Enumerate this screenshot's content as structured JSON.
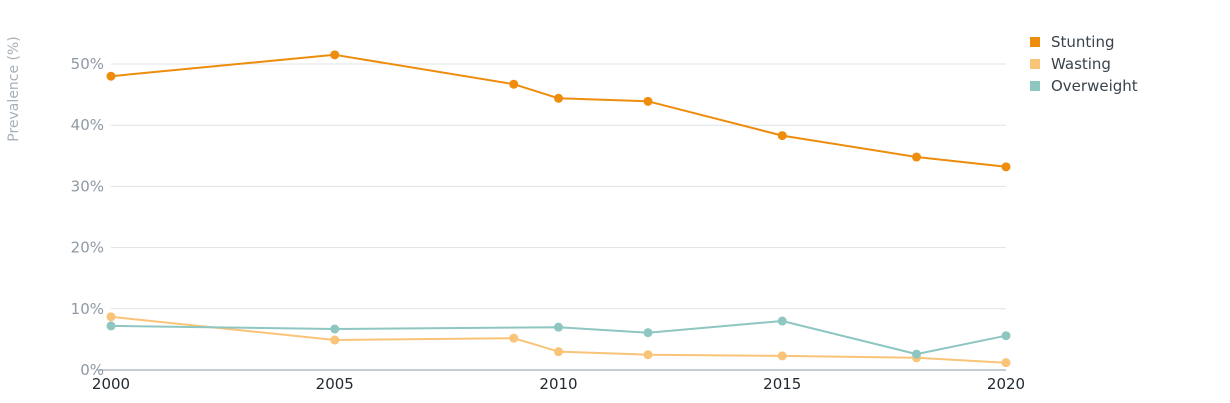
{
  "chart_data": {
    "type": "line",
    "title": "",
    "xlabel": "",
    "ylabel": "Prevalence (%)",
    "xlim": [
      2000,
      2020
    ],
    "ylim": [
      0,
      50
    ],
    "x_ticks": [
      2000,
      2005,
      2010,
      2015,
      2020
    ],
    "x_tick_labels": [
      "2000",
      "2005",
      "2010",
      "2015",
      "2020"
    ],
    "y_ticks": [
      0,
      10,
      20,
      30,
      40,
      50
    ],
    "y_tick_labels": [
      "0%",
      "10%",
      "20%",
      "30%",
      "40%",
      "50%"
    ],
    "grid": "horizontal",
    "legend_position": "top-right",
    "series": [
      {
        "name": "Stunting",
        "color": "#ee8c0c",
        "points": [
          {
            "x": 2000,
            "y": 48.0
          },
          {
            "x": 2005,
            "y": 51.5
          },
          {
            "x": 2009,
            "y": 46.7
          },
          {
            "x": 2010,
            "y": 44.4
          },
          {
            "x": 2012,
            "y": 43.9
          },
          {
            "x": 2015,
            "y": 38.3
          },
          {
            "x": 2018,
            "y": 34.8
          },
          {
            "x": 2020,
            "y": 33.2
          }
        ]
      },
      {
        "name": "Wasting",
        "color": "#fac478",
        "points": [
          {
            "x": 2000,
            "y": 8.7
          },
          {
            "x": 2005,
            "y": 4.9
          },
          {
            "x": 2009,
            "y": 5.2
          },
          {
            "x": 2010,
            "y": 3.0
          },
          {
            "x": 2012,
            "y": 2.5
          },
          {
            "x": 2015,
            "y": 2.3
          },
          {
            "x": 2018,
            "y": 2.0
          },
          {
            "x": 2020,
            "y": 1.2
          }
        ]
      },
      {
        "name": "Overweight",
        "color": "#8ec6c1",
        "points": [
          {
            "x": 2000,
            "y": 7.2
          },
          {
            "x": 2005,
            "y": 6.7
          },
          {
            "x": 2010,
            "y": 7.0
          },
          {
            "x": 2012,
            "y": 6.1
          },
          {
            "x": 2015,
            "y": 8.0
          },
          {
            "x": 2018,
            "y": 2.6
          },
          {
            "x": 2020,
            "y": 5.6
          }
        ]
      }
    ]
  }
}
